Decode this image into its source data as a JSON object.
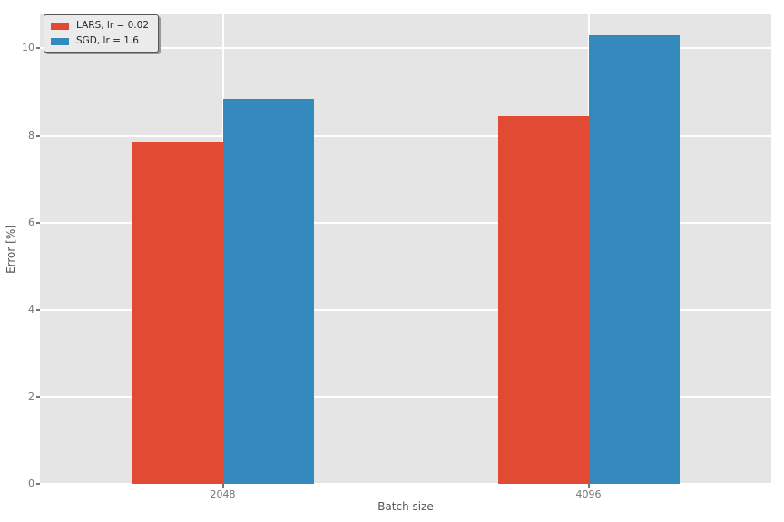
{
  "chart_data": {
    "type": "bar",
    "categories": [
      "2048",
      "4096"
    ],
    "series": [
      {
        "name": "LARS, lr = 0.02",
        "color": "#E24A33",
        "values": [
          7.85,
          8.45
        ]
      },
      {
        "name": "SGD, lr = 1.6",
        "color": "#348ABD",
        "values": [
          8.85,
          10.3
        ]
      }
    ],
    "title": "",
    "xlabel": "Batch size",
    "ylabel": "Error [%]",
    "ylim": [
      0,
      10.8
    ],
    "yticks": [
      0,
      2,
      4,
      6,
      8,
      10
    ],
    "grid": true,
    "legend_position": "upper-left",
    "colors": {
      "figure_background": "#FFFFFF",
      "plot_background": "#E5E5E5",
      "gridline": "#FFFFFF",
      "tick_label": "#767676",
      "axis_label": "#555555",
      "legend_text": "#262626",
      "legend_background": "#EBEBEB",
      "legend_border": "#555555"
    }
  }
}
